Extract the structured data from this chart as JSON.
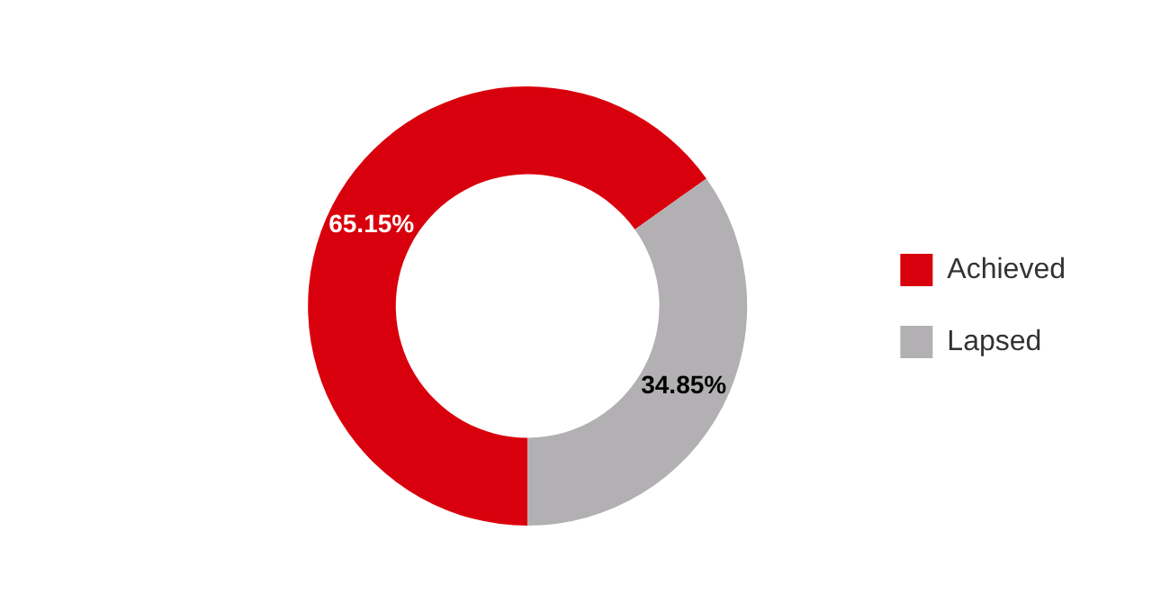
{
  "chart_data": {
    "type": "donut",
    "categories": [
      "Achieved",
      "Lapsed"
    ],
    "values": [
      65.15,
      34.85
    ],
    "colors": [
      "#d9000d",
      "#b2b0b2"
    ],
    "value_labels": [
      "65.15%",
      "34.85%"
    ],
    "legend": "right"
  }
}
